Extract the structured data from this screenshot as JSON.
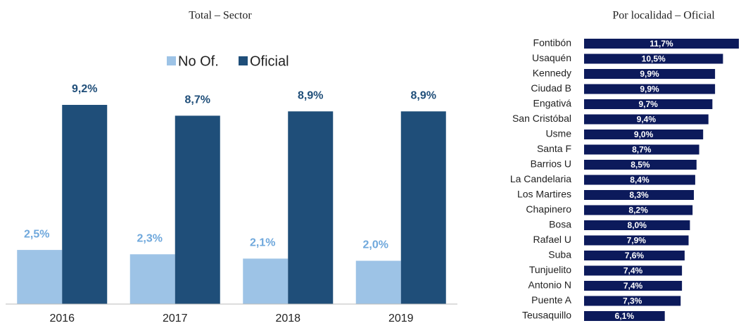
{
  "chart_data": [
    {
      "type": "bar",
      "title": "Total – Sector",
      "categories": [
        "2016",
        "2017",
        "2018",
        "2019"
      ],
      "series": [
        {
          "name": "No Of.",
          "color": "#9dc3e6",
          "label_color": "#6fa8dc",
          "values": [
            2.5,
            2.3,
            2.1,
            2.0
          ],
          "value_labels": [
            "2,5%",
            "2,3%",
            "2,1%",
            "2,0%"
          ]
        },
        {
          "name": "Oficial",
          "color": "#1f4e79",
          "label_color": "#1f4e79",
          "values": [
            9.2,
            8.7,
            8.9,
            8.9
          ],
          "value_labels": [
            "9,2%",
            "8,7%",
            "8,9%",
            "8,9%"
          ]
        }
      ],
      "ylim": [
        0,
        10
      ],
      "legend": "top"
    },
    {
      "type": "hbar",
      "title": "Por localidad – Oficial",
      "color": "#0c1a5b",
      "categories": [
        "Fontibón",
        "Usaquén",
        "Kennedy",
        "Ciudad B",
        "Engativá",
        "San Cristóbal",
        "Usme",
        "Santa F",
        "Barrios U",
        "La Candelaria",
        "Los Martires",
        "Chapinero",
        "Bosa",
        "Rafael U",
        "Suba",
        "Tunjuelito",
        "Antonio N",
        "Puente A",
        "Teusaquillo"
      ],
      "values": [
        11.7,
        10.5,
        9.9,
        9.9,
        9.7,
        9.4,
        9.0,
        8.7,
        8.5,
        8.4,
        8.3,
        8.2,
        8.0,
        7.9,
        7.6,
        7.4,
        7.4,
        7.3,
        6.1
      ],
      "value_labels": [
        "11,7%",
        "10,5%",
        "9,9%",
        "9,9%",
        "9,7%",
        "9,4%",
        "9,0%",
        "8,7%",
        "8,5%",
        "8,4%",
        "8,3%",
        "8,2%",
        "8,0%",
        "7,9%",
        "7,6%",
        "7,4%",
        "7,4%",
        "7,3%",
        "6,1%"
      ],
      "xlim": [
        0,
        12
      ]
    }
  ]
}
